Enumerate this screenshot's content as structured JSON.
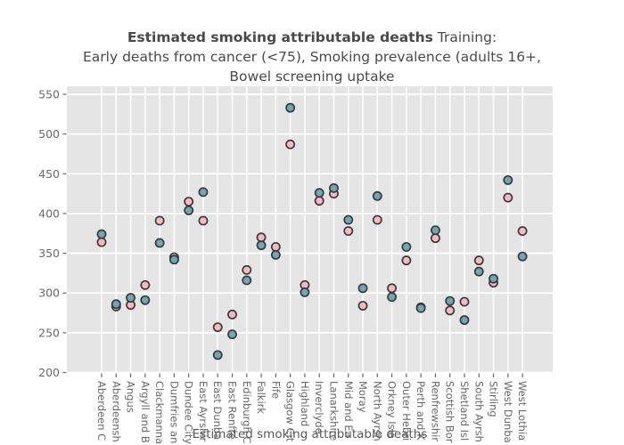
{
  "header": {
    "title_bold": "Estimated smoking attributable deaths",
    "title_suffix": " Training:",
    "subtitle_line2": "Early deaths from cancer (<75), Smoking prevalence (adults 16+,",
    "subtitle_line3": "Bowel screening uptake"
  },
  "chart_data": {
    "type": "scatter",
    "title": "Estimated smoking attributable deaths Training: Early deaths from cancer (<75), Smoking prevalence (adults 16+, Bowel screening uptake",
    "xlabel": "Estimated smoking attributable deaths",
    "ylabel": "",
    "ylim": [
      199.5,
      560
    ],
    "yticks": [
      200,
      250,
      300,
      350,
      400,
      450,
      500,
      550
    ],
    "grid": true,
    "legend": "none",
    "categories": [
      "Aberdeen C",
      "Aberdeensh",
      "Angus",
      "Argyll and B",
      "Clackmanna",
      "Dumfries an",
      "Dundee City",
      "East Ayrshir",
      "East Dunba",
      "East Renfre",
      "Edinburgh C",
      "Falkirk",
      "Fife",
      "Glasgow Cit",
      "Highland",
      "Inverclyde",
      "Lanarkshire",
      "Mid and Ea",
      "Moray",
      "North Ayrsh",
      "Orkney Isla",
      "Outer Hebri",
      "Perth and K",
      "Renfrewshir",
      "Scottish Bor",
      "Shetland Isl",
      "South Ayrsh",
      "Stirling",
      "West Dunba",
      "West Lothia"
    ],
    "series": [
      {
        "name": "pink",
        "color": "#F8B9C2",
        "values": [
          364,
          283,
          285,
          310,
          391,
          345,
          415,
          391,
          257,
          273,
          329,
          370,
          358,
          487,
          310,
          416,
          425,
          378,
          284,
          392,
          306,
          341,
          282,
          369,
          278,
          289,
          341,
          313,
          420,
          378
        ]
      },
      {
        "name": "teal",
        "color": "#6FA7B5",
        "values": [
          374,
          286,
          294,
          291,
          363,
          342,
          404,
          427,
          222,
          248,
          316,
          360,
          348,
          533,
          301,
          426,
          432,
          392,
          306,
          422,
          295,
          358,
          281,
          379,
          290,
          266,
          327,
          318,
          442,
          346
        ]
      }
    ],
    "colors": {
      "panel_bg": "#E5E5E5",
      "gridline": "#FFFFFF",
      "tick_text": "#696969",
      "marker_stroke": "#3A3A3A",
      "axis_title_text": "#5A5A5A"
    },
    "marker": {
      "radius": 4.6,
      "stroke_width": 1.7
    }
  }
}
